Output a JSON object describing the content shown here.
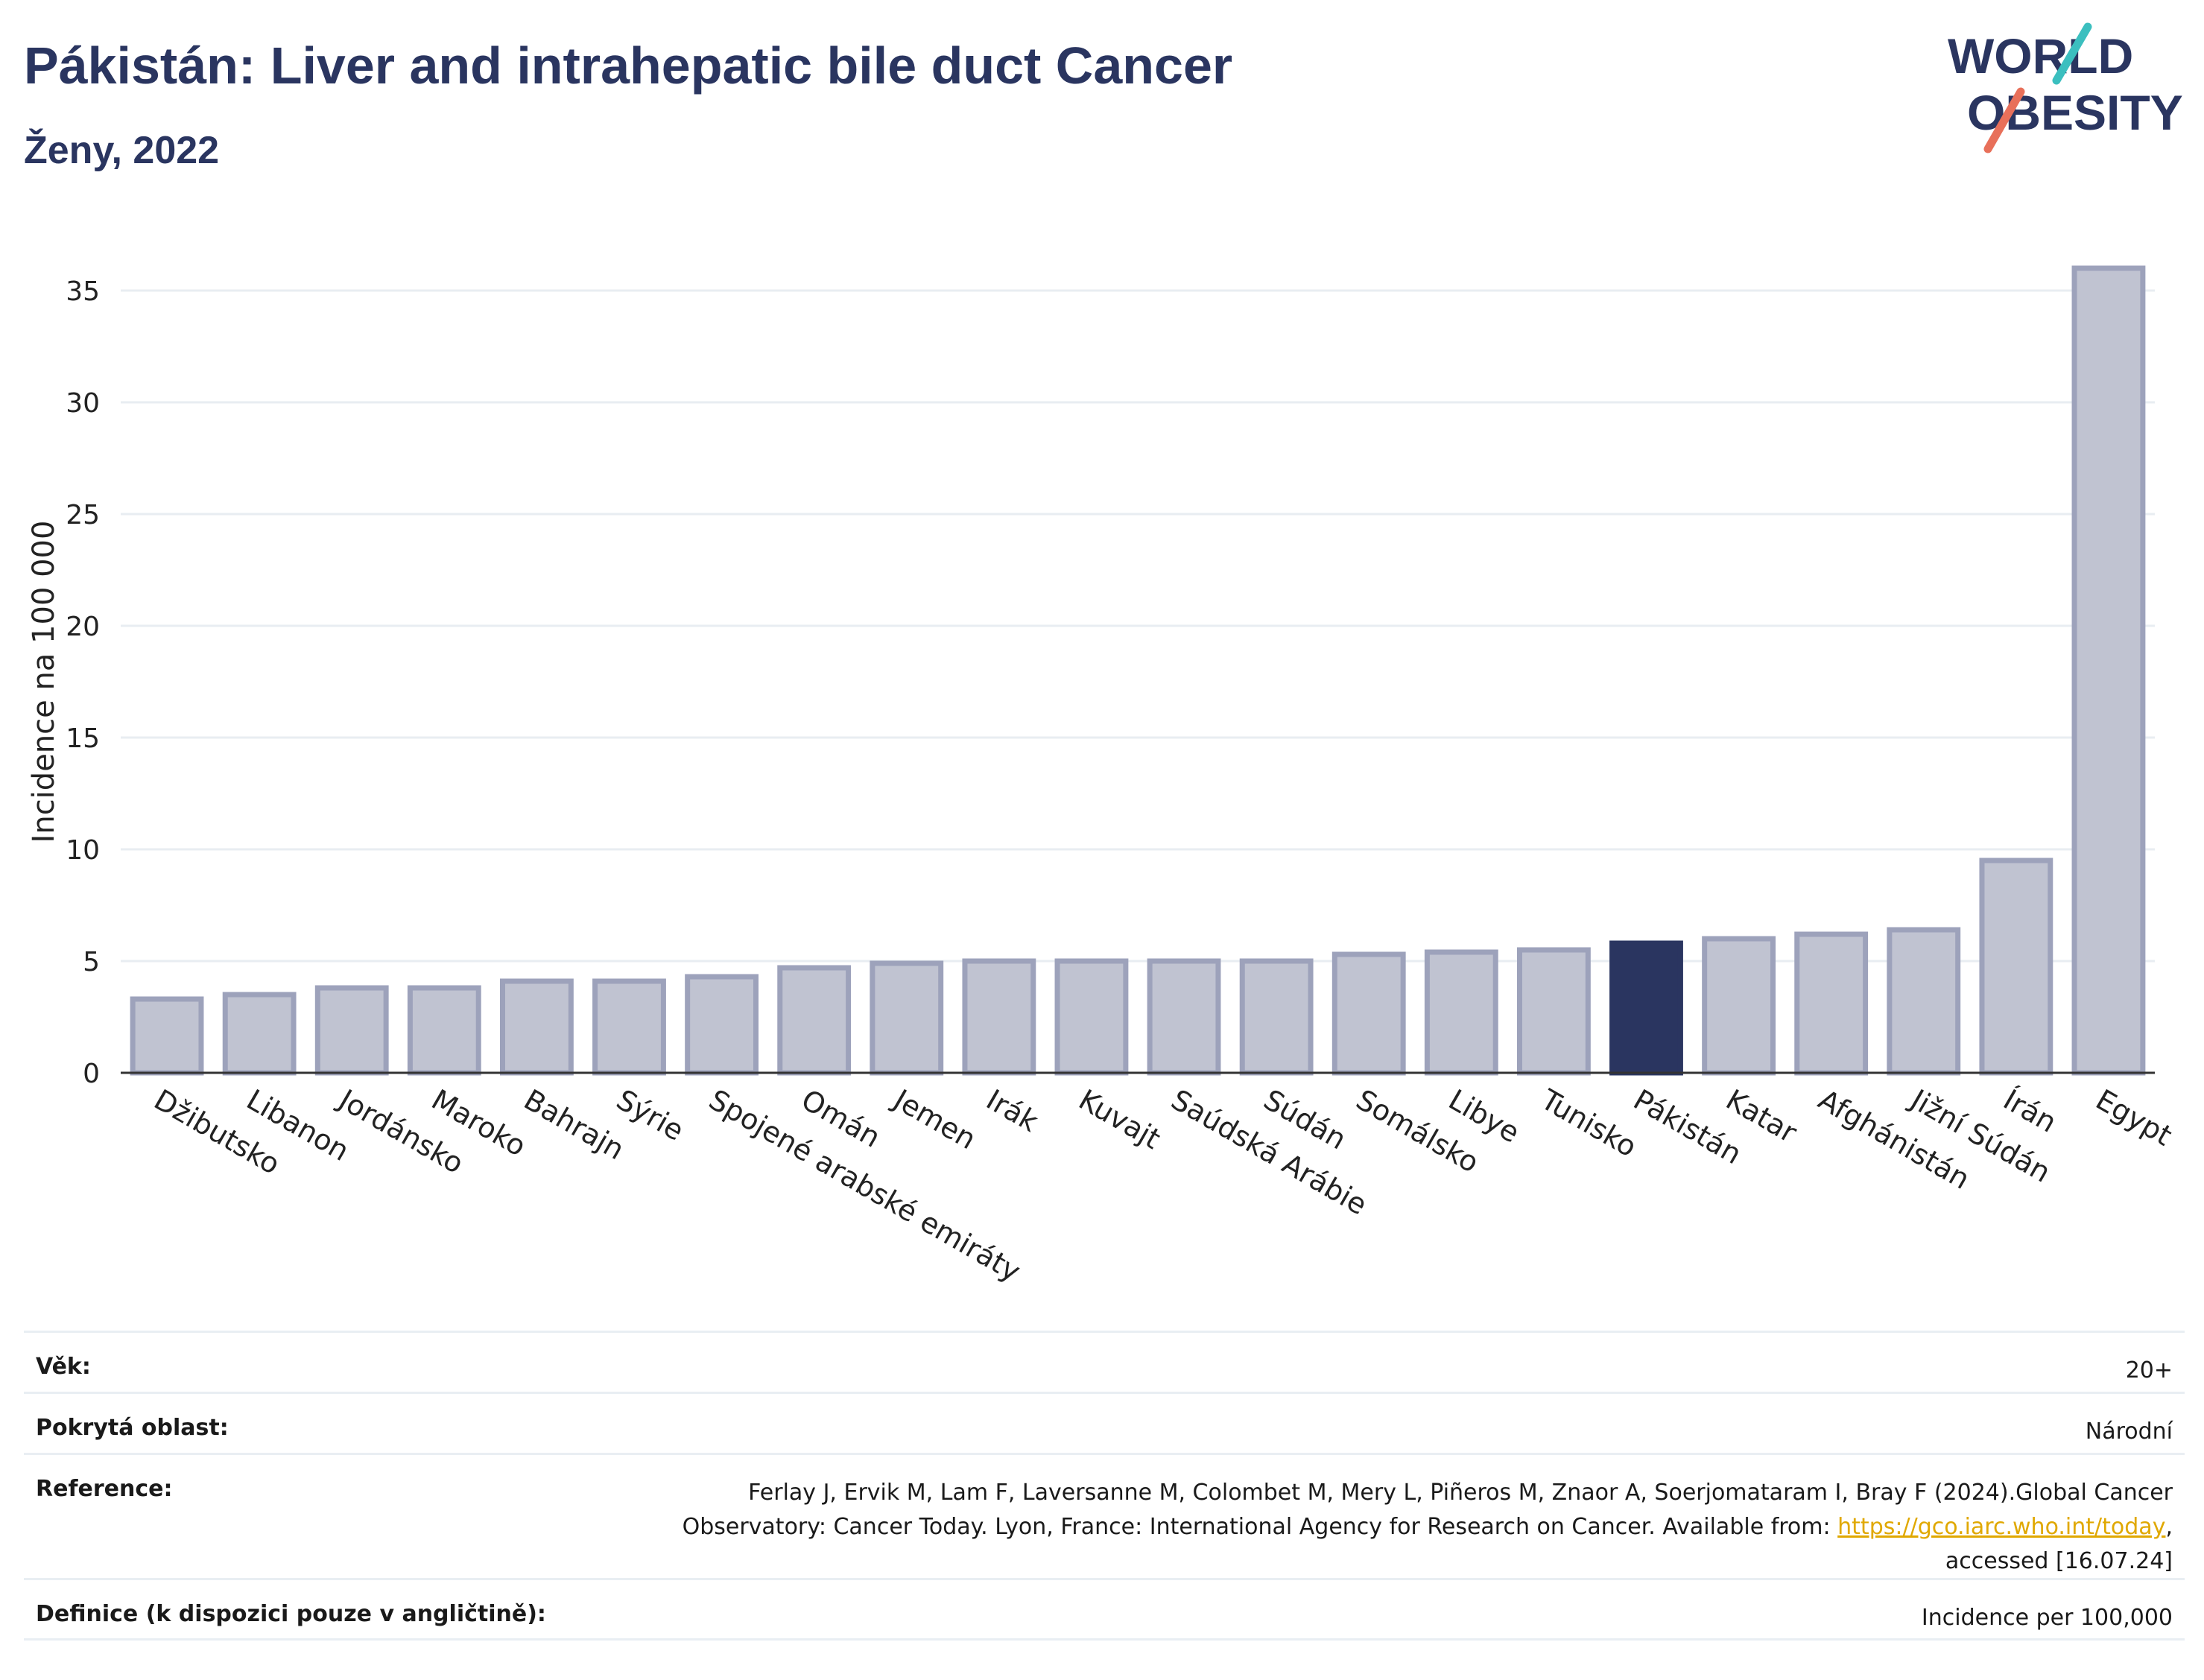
{
  "header": {
    "title": "Pákistán: Liver and intrahepatic bile duct Cancer",
    "subtitle": "Ženy, 2022"
  },
  "logo": {
    "line1": "WORLD",
    "line2": "OBESITY",
    "accent_teal": "#3bbfbf",
    "accent_coral": "#e8705a",
    "text_color": "#2a3560"
  },
  "colors": {
    "bar": "#c0c3d1",
    "bar_stroke": "#9da2bb",
    "highlight": "#2a3560",
    "grid": "#e8edf2"
  },
  "chart_data": {
    "type": "bar",
    "ylabel": "Incidence na 100 000",
    "ylim": [
      0,
      37
    ],
    "yticks": [
      0,
      5,
      10,
      15,
      20,
      25,
      30,
      35
    ],
    "grid": true,
    "highlight": "Pákistán",
    "categories": [
      "Džibutsko",
      "Libanon",
      "Jordánsko",
      "Maroko",
      "Bahrajn",
      "Sýrie",
      "Spojené arabské emiráty",
      "Omán",
      "Jemen",
      "Irák",
      "Kuvajt",
      "Saúdská Arábie",
      "Súdán",
      "Somálsko",
      "Libye",
      "Tunisko",
      "Pákistán",
      "Katar",
      "Afghánistán",
      "Jižní Súdán",
      "Írán",
      "Egypt"
    ],
    "values": [
      3.3,
      3.5,
      3.8,
      3.8,
      4.1,
      4.1,
      4.3,
      4.7,
      4.9,
      5.0,
      5.0,
      5.0,
      5.0,
      5.3,
      5.4,
      5.5,
      5.8,
      6.0,
      6.2,
      6.4,
      9.5,
      36.0
    ]
  },
  "info": {
    "age_label": "Věk:",
    "age_value": "20+",
    "area_label": "Pokrytá oblast:",
    "area_value": "Národní",
    "reference_label": "Reference:",
    "reference_text": "Ferlay J, Ervik M, Lam F, Laversanne M, Colombet M, Mery L, Piñeros M, Znaor A, Soerjomataram I, Bray F (2024).Global Cancer Observatory: Cancer Today. Lyon, France: International Agency for Research on Cancer. Available from: ",
    "reference_link": "https://gco.iarc.who.int/today",
    "reference_tail": ", accessed [16.07.24]",
    "definition_label": "Definice (k dispozici pouze v angličtině):",
    "definition_value": "Incidence per 100,000"
  }
}
